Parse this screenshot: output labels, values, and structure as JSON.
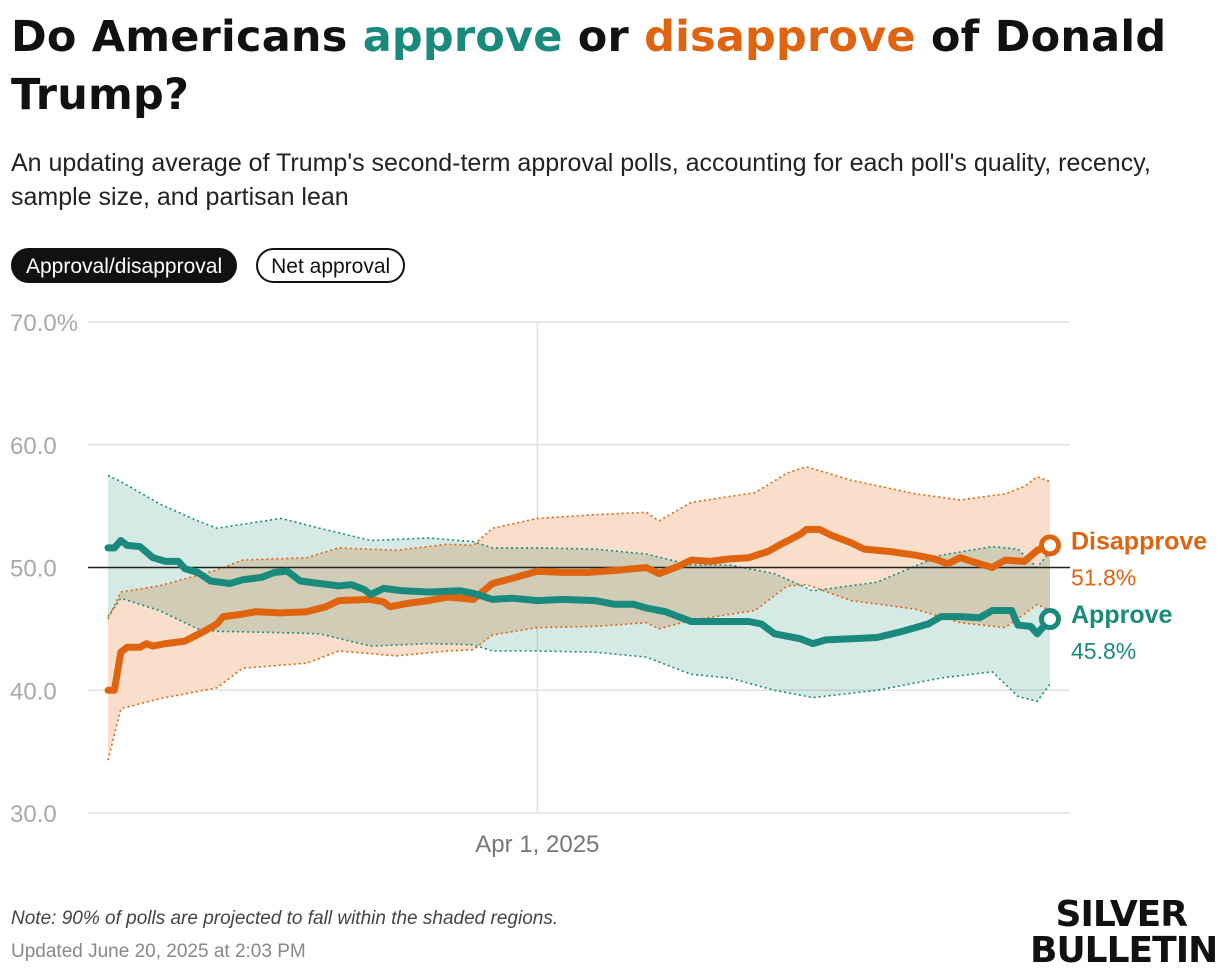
{
  "header": {
    "title_part1": "Do Americans ",
    "title_approve": "approve",
    "title_mid": " or ",
    "title_disapprove": "disapprove",
    "title_part2": " of Donald Trump?",
    "subtitle": "An updating average of Trump's second-term approval polls, accounting for each poll's quality, recency, sample size, and partisan lean"
  },
  "toggles": {
    "options": [
      "Approval/disapproval",
      "Net approval"
    ],
    "selected": "Approval/disapproval"
  },
  "colors": {
    "approve": "#1a8a7c",
    "approve_band": "#cfe6e1",
    "disapprove": "#e06410",
    "disapprove_band": "#f8d9c2",
    "overlap_band": "#d8ccb4"
  },
  "chart_data": {
    "type": "line",
    "ylim": [
      30,
      70
    ],
    "yticks": [
      "70.0%",
      "60.0",
      "50.0",
      "40.0",
      "30.0"
    ],
    "x_start": "2025-01-24",
    "x_end": "2025-06-20",
    "xticks": [
      {
        "date": "2025-04-01",
        "label": "Apr 1, 2025"
      }
    ],
    "reference_line": 50,
    "grid": true,
    "series": [
      {
        "name": "Disapprove",
        "final_label": "51.8%",
        "points": [
          [
            "2025-01-24",
            40.0
          ],
          [
            "2025-01-25",
            40.0
          ],
          [
            "2025-01-26",
            43.1
          ],
          [
            "2025-01-27",
            43.5
          ],
          [
            "2025-01-29",
            43.5
          ],
          [
            "2025-01-30",
            43.8
          ],
          [
            "2025-01-31",
            43.6
          ],
          [
            "2025-02-02",
            43.8
          ],
          [
            "2025-02-05",
            44.0
          ],
          [
            "2025-02-08",
            44.8
          ],
          [
            "2025-02-10",
            45.4
          ],
          [
            "2025-02-11",
            46.0
          ],
          [
            "2025-02-14",
            46.2
          ],
          [
            "2025-02-16",
            46.4
          ],
          [
            "2025-02-20",
            46.3
          ],
          [
            "2025-02-24",
            46.4
          ],
          [
            "2025-02-27",
            46.8
          ],
          [
            "2025-03-01",
            47.3
          ],
          [
            "2025-03-06",
            47.4
          ],
          [
            "2025-03-08",
            47.2
          ],
          [
            "2025-03-09",
            46.8
          ],
          [
            "2025-03-12",
            47.1
          ],
          [
            "2025-03-15",
            47.3
          ],
          [
            "2025-03-18",
            47.6
          ],
          [
            "2025-03-22",
            47.4
          ],
          [
            "2025-03-25",
            48.7
          ],
          [
            "2025-03-28",
            49.1
          ],
          [
            "2025-04-01",
            49.7
          ],
          [
            "2025-04-05",
            49.6
          ],
          [
            "2025-04-09",
            49.6
          ],
          [
            "2025-04-14",
            49.8
          ],
          [
            "2025-04-18",
            50.0
          ],
          [
            "2025-04-20",
            49.5
          ],
          [
            "2025-04-23",
            50.1
          ],
          [
            "2025-04-25",
            50.6
          ],
          [
            "2025-04-28",
            50.5
          ],
          [
            "2025-05-01",
            50.7
          ],
          [
            "2025-05-04",
            50.8
          ],
          [
            "2025-05-07",
            51.3
          ],
          [
            "2025-05-09",
            51.9
          ],
          [
            "2025-05-12",
            52.7
          ],
          [
            "2025-05-13",
            53.1
          ],
          [
            "2025-05-15",
            53.1
          ],
          [
            "2025-05-17",
            52.6
          ],
          [
            "2025-05-20",
            52.0
          ],
          [
            "2025-05-22",
            51.5
          ],
          [
            "2025-05-26",
            51.3
          ],
          [
            "2025-05-30",
            51.0
          ],
          [
            "2025-06-02",
            50.7
          ],
          [
            "2025-06-04",
            50.3
          ],
          [
            "2025-06-06",
            50.8
          ],
          [
            "2025-06-09",
            50.3
          ],
          [
            "2025-06-11",
            50.0
          ],
          [
            "2025-06-13",
            50.6
          ],
          [
            "2025-06-16",
            50.5
          ],
          [
            "2025-06-18",
            51.4
          ],
          [
            "2025-06-20",
            51.8
          ]
        ],
        "band": [
          [
            "2025-01-24",
            34.3,
            45.8
          ],
          [
            "2025-01-26",
            38.5,
            48.0
          ],
          [
            "2025-02-01",
            39.3,
            48.5
          ],
          [
            "2025-02-10",
            40.2,
            49.8
          ],
          [
            "2025-02-14",
            41.8,
            50.6
          ],
          [
            "2025-02-24",
            42.2,
            50.8
          ],
          [
            "2025-03-01",
            43.2,
            51.6
          ],
          [
            "2025-03-10",
            42.8,
            51.4
          ],
          [
            "2025-03-18",
            43.2,
            51.9
          ],
          [
            "2025-03-22",
            43.3,
            51.8
          ],
          [
            "2025-03-25",
            44.5,
            53.2
          ],
          [
            "2025-04-01",
            45.1,
            54.0
          ],
          [
            "2025-04-10",
            45.2,
            54.3
          ],
          [
            "2025-04-18",
            45.5,
            54.5
          ],
          [
            "2025-04-20",
            45.0,
            53.8
          ],
          [
            "2025-04-25",
            45.7,
            55.3
          ],
          [
            "2025-05-05",
            46.5,
            56.1
          ],
          [
            "2025-05-10",
            48.5,
            57.7
          ],
          [
            "2025-05-13",
            48.6,
            58.2
          ],
          [
            "2025-05-20",
            47.3,
            57.1
          ],
          [
            "2025-05-30",
            46.6,
            56.0
          ],
          [
            "2025-06-06",
            45.5,
            55.5
          ],
          [
            "2025-06-13",
            45.1,
            56.0
          ],
          [
            "2025-06-16",
            46.2,
            56.6
          ],
          [
            "2025-06-18",
            47.0,
            57.4
          ],
          [
            "2025-06-20",
            46.5,
            57.0
          ]
        ]
      },
      {
        "name": "Approve",
        "final_label": "45.8%",
        "points": [
          [
            "2025-01-24",
            51.6
          ],
          [
            "2025-01-25",
            51.6
          ],
          [
            "2025-01-26",
            52.2
          ],
          [
            "2025-01-27",
            51.8
          ],
          [
            "2025-01-29",
            51.7
          ],
          [
            "2025-01-31",
            50.8
          ],
          [
            "2025-02-02",
            50.5
          ],
          [
            "2025-02-04",
            50.5
          ],
          [
            "2025-02-05",
            49.9
          ],
          [
            "2025-02-07",
            49.6
          ],
          [
            "2025-02-09",
            48.9
          ],
          [
            "2025-02-12",
            48.7
          ],
          [
            "2025-02-14",
            49.0
          ],
          [
            "2025-02-17",
            49.2
          ],
          [
            "2025-02-19",
            49.6
          ],
          [
            "2025-02-21",
            49.7
          ],
          [
            "2025-02-23",
            48.9
          ],
          [
            "2025-02-26",
            48.7
          ],
          [
            "2025-03-01",
            48.5
          ],
          [
            "2025-03-03",
            48.6
          ],
          [
            "2025-03-05",
            48.2
          ],
          [
            "2025-03-06",
            47.8
          ],
          [
            "2025-03-08",
            48.3
          ],
          [
            "2025-03-11",
            48.1
          ],
          [
            "2025-03-15",
            48.0
          ],
          [
            "2025-03-20",
            48.1
          ],
          [
            "2025-03-22",
            47.9
          ],
          [
            "2025-03-25",
            47.4
          ],
          [
            "2025-03-28",
            47.5
          ],
          [
            "2025-04-01",
            47.3
          ],
          [
            "2025-04-05",
            47.4
          ],
          [
            "2025-04-10",
            47.3
          ],
          [
            "2025-04-13",
            47.0
          ],
          [
            "2025-04-16",
            47.0
          ],
          [
            "2025-04-18",
            46.7
          ],
          [
            "2025-04-21",
            46.4
          ],
          [
            "2025-04-25",
            45.6
          ],
          [
            "2025-04-28",
            45.6
          ],
          [
            "2025-05-01",
            45.6
          ],
          [
            "2025-05-04",
            45.6
          ],
          [
            "2025-05-06",
            45.4
          ],
          [
            "2025-05-08",
            44.6
          ],
          [
            "2025-05-12",
            44.2
          ],
          [
            "2025-05-14",
            43.8
          ],
          [
            "2025-05-16",
            44.1
          ],
          [
            "2025-05-20",
            44.2
          ],
          [
            "2025-05-24",
            44.3
          ],
          [
            "2025-05-28",
            44.8
          ],
          [
            "2025-06-01",
            45.4
          ],
          [
            "2025-06-03",
            46.0
          ],
          [
            "2025-06-06",
            46.0
          ],
          [
            "2025-06-09",
            45.9
          ],
          [
            "2025-06-11",
            46.5
          ],
          [
            "2025-06-14",
            46.5
          ],
          [
            "2025-06-15",
            45.3
          ],
          [
            "2025-06-17",
            45.2
          ],
          [
            "2025-06-18",
            44.6
          ],
          [
            "2025-06-20",
            45.8
          ]
        ],
        "band": [
          [
            "2025-01-24",
            46.0,
            57.5
          ],
          [
            "2025-01-26",
            47.5,
            57.0
          ],
          [
            "2025-02-01",
            46.5,
            55.2
          ],
          [
            "2025-02-07",
            45.0,
            53.8
          ],
          [
            "2025-02-10",
            44.8,
            53.2
          ],
          [
            "2025-02-20",
            44.7,
            54.0
          ],
          [
            "2025-02-26",
            44.6,
            53.2
          ],
          [
            "2025-03-06",
            43.6,
            52.2
          ],
          [
            "2025-03-15",
            43.8,
            52.4
          ],
          [
            "2025-03-22",
            43.7,
            52.1
          ],
          [
            "2025-03-25",
            43.2,
            51.6
          ],
          [
            "2025-04-01",
            43.2,
            51.6
          ],
          [
            "2025-04-10",
            43.1,
            51.5
          ],
          [
            "2025-04-18",
            42.7,
            51.1
          ],
          [
            "2025-04-25",
            41.3,
            50.2
          ],
          [
            "2025-05-01",
            41.0,
            50.2
          ],
          [
            "2025-05-08",
            40.0,
            49.5
          ],
          [
            "2025-05-14",
            39.4,
            48.1
          ],
          [
            "2025-05-24",
            40.0,
            48.8
          ],
          [
            "2025-06-03",
            41.0,
            51.0
          ],
          [
            "2025-06-11",
            41.5,
            51.7
          ],
          [
            "2025-06-15",
            39.5,
            51.5
          ],
          [
            "2025-06-18",
            39.1,
            50.0
          ],
          [
            "2025-06-20",
            40.5,
            51.3
          ]
        ]
      }
    ]
  },
  "footer": {
    "note": "Note: 90% of polls are projected to fall within the shaded regions.",
    "updated": "Updated June 20, 2025 at 2:03 PM",
    "logo_line1": "SILVER",
    "logo_line2": "BULLETIN"
  }
}
